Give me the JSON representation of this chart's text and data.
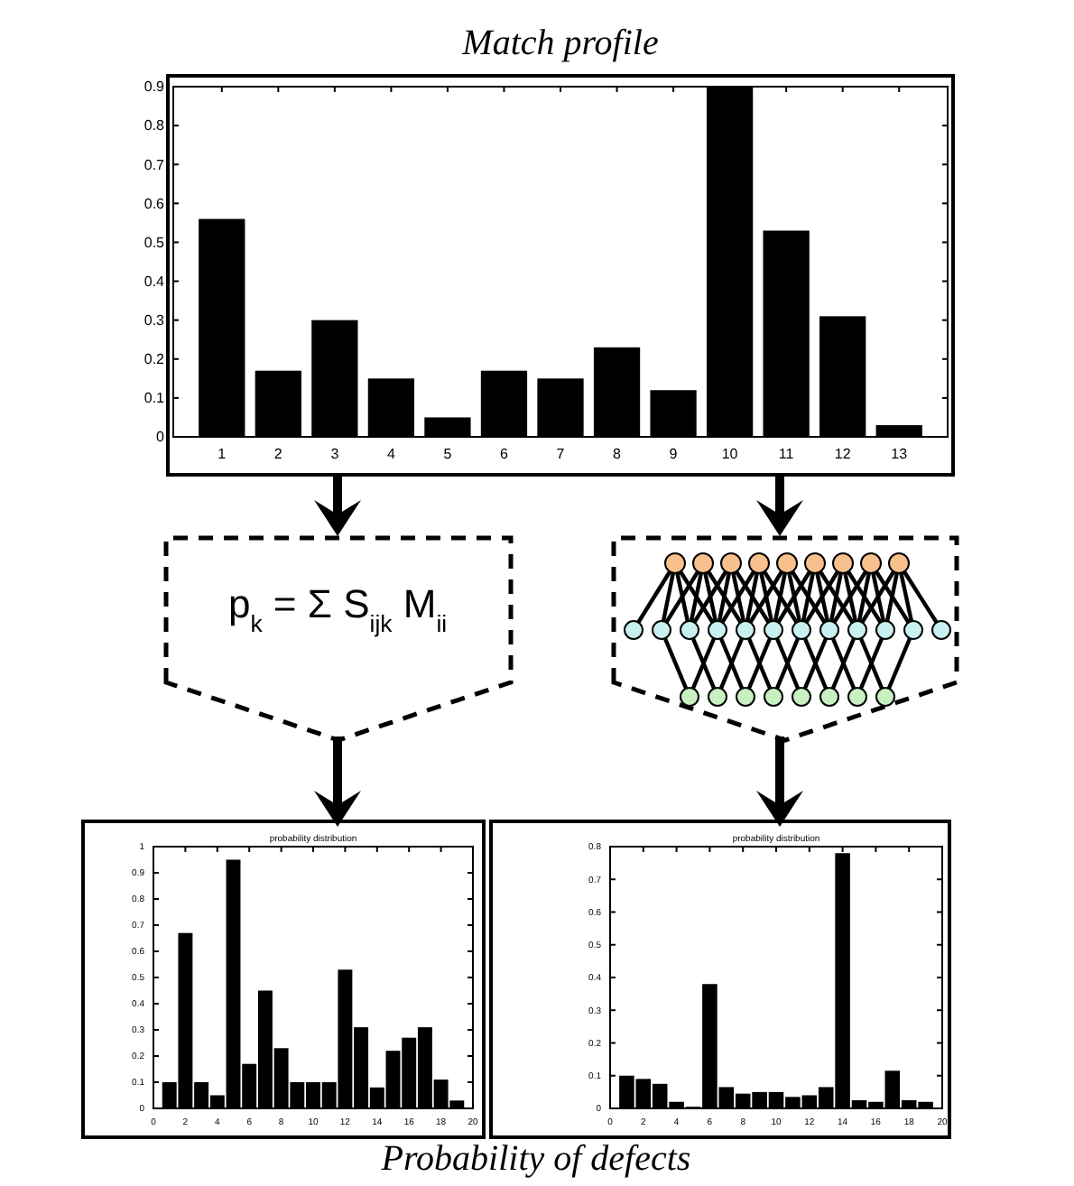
{
  "chart_data": [
    {
      "type": "bar",
      "title": "Match profile",
      "categories": [
        "1",
        "2",
        "3",
        "4",
        "5",
        "6",
        "7",
        "8",
        "9",
        "10",
        "11",
        "12",
        "13"
      ],
      "values": [
        0.56,
        0.17,
        0.3,
        0.15,
        0.05,
        0.17,
        0.15,
        0.23,
        0.12,
        0.9,
        0.53,
        0.31,
        0.03
      ],
      "color": "#000000",
      "ylim": [
        0,
        0.9
      ],
      "yticks": [
        0,
        0.1,
        0.2,
        0.3,
        0.4,
        0.5,
        0.6,
        0.7,
        0.8,
        0.9
      ]
    },
    {
      "type": "bar",
      "title": "probability distribution",
      "annotations": [
        "p$_{k}$ = Σ S$_{ijk}$ M$_{ii}$"
      ],
      "x": [
        1,
        2,
        3,
        4,
        5,
        6,
        7,
        8,
        9,
        10,
        11,
        12,
        13,
        14,
        15,
        16,
        17,
        18,
        19
      ],
      "values": [
        0.1,
        0.67,
        0.1,
        0.05,
        0.95,
        0.17,
        0.45,
        0.23,
        0.1,
        0.1,
        0.1,
        0.53,
        0.31,
        0.08,
        0.22,
        0.27,
        0.31,
        0.11,
        0.03
      ],
      "color": "#000000",
      "xlim": [
        0,
        20
      ],
      "xticks": [
        0,
        2,
        4,
        6,
        8,
        10,
        12,
        14,
        16,
        18,
        20
      ],
      "ylim": [
        0,
        1
      ],
      "yticks": [
        0,
        0.1,
        0.2,
        0.3,
        0.4,
        0.5,
        0.6,
        0.7,
        0.8,
        0.9,
        1
      ]
    },
    {
      "type": "bar",
      "title": "probability distribution",
      "annotations": [
        "Probability of defects"
      ],
      "x": [
        1,
        2,
        3,
        4,
        5,
        6,
        7,
        8,
        9,
        10,
        11,
        12,
        13,
        14,
        15,
        16,
        17,
        18,
        19
      ],
      "values": [
        0.1,
        0.09,
        0.075,
        0.02,
        0.005,
        0.38,
        0.065,
        0.045,
        0.05,
        0.05,
        0.035,
        0.04,
        0.065,
        0.78,
        0.025,
        0.02,
        0.115,
        0.025,
        0.02
      ],
      "color": "#000000",
      "xlim": [
        0,
        20
      ],
      "xticks": [
        0,
        2,
        4,
        6,
        8,
        10,
        12,
        14,
        16,
        18,
        20
      ],
      "ylim": [
        0,
        0.8
      ],
      "yticks": [
        0,
        0.1,
        0.2,
        0.3,
        0.4,
        0.5,
        0.6,
        0.7,
        0.8
      ]
    }
  ]
}
